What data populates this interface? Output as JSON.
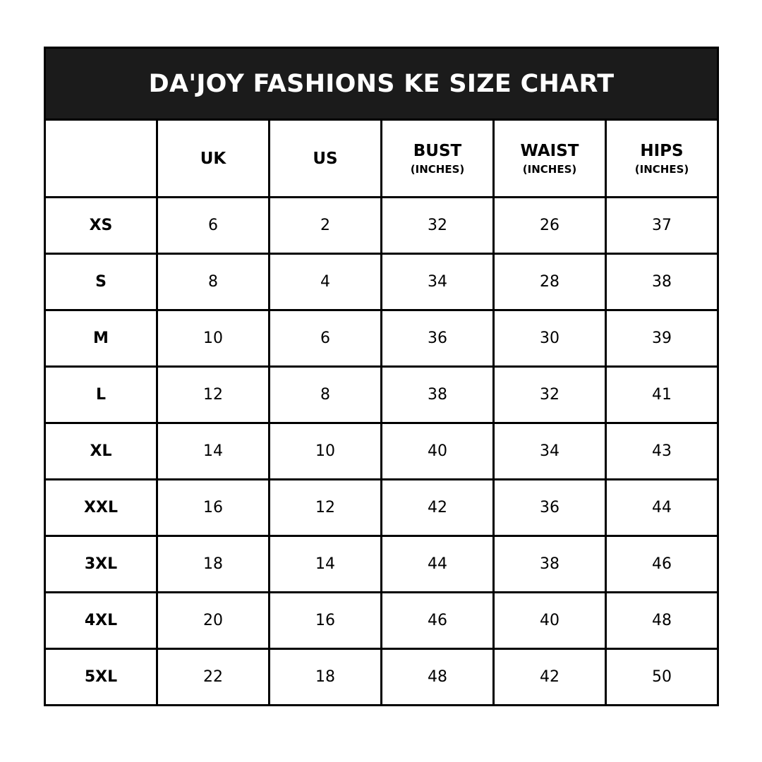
{
  "title": "DA'JOY FASHIONS KE SIZE CHART",
  "columns": [
    {
      "label": "",
      "sub": ""
    },
    {
      "label": "UK",
      "sub": ""
    },
    {
      "label": "US",
      "sub": ""
    },
    {
      "label": "BUST",
      "sub": "(INCHES)"
    },
    {
      "label": "WAIST",
      "sub": "(INCHES)"
    },
    {
      "label": "HIPS",
      "sub": "(INCHES)"
    }
  ],
  "rows": [
    [
      "XS",
      "6",
      "2",
      "32",
      "26",
      "37"
    ],
    [
      "S",
      "8",
      "4",
      "34",
      "28",
      "38"
    ],
    [
      "M",
      "10",
      "6",
      "36",
      "30",
      "39"
    ],
    [
      "L",
      "12",
      "8",
      "38",
      "32",
      "41"
    ],
    [
      "XL",
      "14",
      "10",
      "40",
      "34",
      "43"
    ],
    [
      "XXL",
      "16",
      "12",
      "42",
      "36",
      "44"
    ],
    [
      "3XL",
      "18",
      "14",
      "44",
      "38",
      "46"
    ],
    [
      "4XL",
      "20",
      "16",
      "46",
      "40",
      "48"
    ],
    [
      "5XL",
      "22",
      "18",
      "48",
      "42",
      "50"
    ]
  ],
  "colors": {
    "title_bg": "#1b1b1b",
    "title_text": "#ffffff",
    "border": "#000000"
  }
}
